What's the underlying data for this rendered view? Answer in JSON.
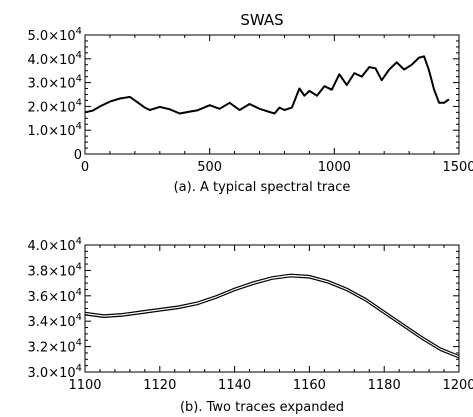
{
  "chart_data": [
    {
      "type": "line",
      "title": "SWAS",
      "caption": "(a). A typical spectral trace",
      "xlim": [
        0,
        1500
      ],
      "ylim": [
        0,
        50000
      ],
      "x_ticks": [
        0,
        500,
        1000,
        1500
      ],
      "x_tick_labels": [
        "0",
        "500",
        "1000",
        "1500"
      ],
      "y_ticks": [
        0,
        10000,
        20000,
        30000,
        40000,
        50000
      ],
      "y_tick_labels": [
        {
          "mantissa": "0",
          "exp": ""
        },
        {
          "mantissa": "1.0×10",
          "exp": "4"
        },
        {
          "mantissa": "2.0×10",
          "exp": "4"
        },
        {
          "mantissa": "3.0×10",
          "exp": "4"
        },
        {
          "mantissa": "4.0×10",
          "exp": "4"
        },
        {
          "mantissa": "5.0×10",
          "exp": "4"
        }
      ],
      "grid": false,
      "series": [
        {
          "x": [
            0,
            30,
            60,
            100,
            140,
            180,
            200,
            240,
            260,
            300,
            340,
            380,
            420,
            450,
            500,
            540,
            580,
            620,
            660,
            700,
            730,
            760,
            780,
            800,
            830,
            860,
            880,
            900,
            930,
            960,
            990,
            1020,
            1050,
            1080,
            1110,
            1140,
            1165,
            1190,
            1220,
            1250,
            1280,
            1310,
            1340,
            1360,
            1380,
            1400,
            1420,
            1440,
            1460
          ],
          "values": [
            17500,
            18200,
            20000,
            22000,
            23300,
            24000,
            22500,
            19500,
            18500,
            19800,
            18800,
            17000,
            17800,
            18300,
            20500,
            19000,
            21500,
            18500,
            21000,
            19000,
            18000,
            17000,
            19500,
            18500,
            19500,
            27500,
            24500,
            26500,
            24500,
            28500,
            27000,
            33500,
            29000,
            34000,
            32500,
            36500,
            36000,
            31000,
            35500,
            38500,
            35500,
            37500,
            40500,
            41000,
            35000,
            27000,
            21500,
            21500,
            23000
          ]
        }
      ]
    },
    {
      "type": "line",
      "caption": "(b). Two traces expanded",
      "xlim": [
        1100,
        1200
      ],
      "ylim": [
        30000,
        40000
      ],
      "x_ticks": [
        1100,
        1120,
        1140,
        1160,
        1180,
        1200
      ],
      "x_tick_labels": [
        "1100",
        "1120",
        "1140",
        "1160",
        "1180",
        "1200"
      ],
      "y_ticks": [
        30000,
        32000,
        34000,
        36000,
        38000,
        40000
      ],
      "y_tick_labels": [
        {
          "mantissa": "3.0×10",
          "exp": "4"
        },
        {
          "mantissa": "3.2×10",
          "exp": "4"
        },
        {
          "mantissa": "3.4×10",
          "exp": "4"
        },
        {
          "mantissa": "3.6×10",
          "exp": "4"
        },
        {
          "mantissa": "3.8×10",
          "exp": "4"
        },
        {
          "mantissa": "4.0×10",
          "exp": "4"
        }
      ],
      "grid": false,
      "series": [
        {
          "x": [
            1100,
            1105,
            1110,
            1115,
            1120,
            1125,
            1130,
            1135,
            1140,
            1145,
            1150,
            1155,
            1160,
            1165,
            1170,
            1175,
            1180,
            1185,
            1190,
            1195,
            1200
          ],
          "values": [
            34700,
            34500,
            34600,
            34800,
            35000,
            35200,
            35500,
            36000,
            36600,
            37100,
            37500,
            37700,
            37600,
            37200,
            36600,
            35800,
            34800,
            33800,
            32800,
            31900,
            31300
          ]
        },
        {
          "x": [
            1100,
            1105,
            1110,
            1115,
            1120,
            1125,
            1130,
            1135,
            1140,
            1145,
            1150,
            1155,
            1160,
            1165,
            1170,
            1175,
            1180,
            1185,
            1190,
            1195,
            1200
          ],
          "values": [
            34500,
            34300,
            34400,
            34600,
            34800,
            35000,
            35300,
            35800,
            36400,
            36900,
            37300,
            37500,
            37400,
            37000,
            36400,
            35600,
            34600,
            33600,
            32600,
            31700,
            31100
          ]
        }
      ]
    }
  ]
}
